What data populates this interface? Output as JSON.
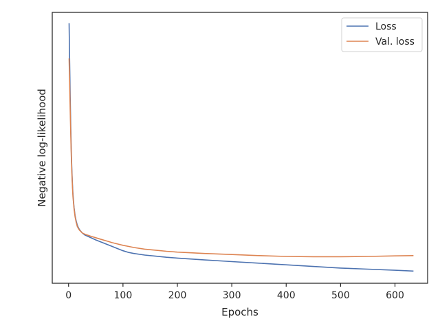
{
  "chart_data": {
    "type": "line",
    "title": "",
    "xlabel": "Epochs",
    "ylabel": "Negative log-likelihood",
    "xlim": [
      -30,
      660
    ],
    "ylim": [
      0,
      100
    ],
    "xticks": [
      0,
      100,
      200,
      300,
      400,
      500,
      600
    ],
    "yticks": [],
    "grid": false,
    "legend_position": "top-right",
    "series": [
      {
        "name": "Loss",
        "color": "#4c72b0",
        "x": [
          1,
          2,
          3,
          4,
          5,
          6,
          7,
          8,
          10,
          12,
          14,
          16,
          18,
          20,
          25,
          30,
          40,
          50,
          60,
          70,
          80,
          90,
          100,
          110,
          120,
          140,
          160,
          180,
          200,
          250,
          300,
          350,
          400,
          450,
          500,
          550,
          600,
          634
        ],
        "y": [
          96,
          82,
          69,
          58,
          49,
          42,
          37,
          33,
          28,
          25,
          23,
          21.5,
          20.5,
          19.8,
          18.6,
          17.8,
          16.9,
          16.0,
          15.2,
          14.4,
          13.6,
          12.8,
          12.0,
          11.4,
          11.0,
          10.4,
          10.0,
          9.6,
          9.3,
          8.6,
          8.0,
          7.4,
          6.8,
          6.2,
          5.6,
          5.2,
          4.8,
          4.5
        ]
      },
      {
        "name": "Val. loss",
        "color": "#dd8452",
        "x": [
          1,
          2,
          3,
          4,
          5,
          6,
          7,
          8,
          10,
          12,
          14,
          16,
          18,
          20,
          25,
          30,
          40,
          50,
          60,
          70,
          80,
          90,
          100,
          110,
          120,
          140,
          160,
          180,
          200,
          250,
          300,
          350,
          400,
          450,
          500,
          550,
          600,
          634
        ],
        "y": [
          83,
          74,
          64,
          55,
          47,
          41,
          36,
          32,
          27.5,
          24.5,
          22.5,
          21,
          20.2,
          19.6,
          18.6,
          18.1,
          17.4,
          16.8,
          16.2,
          15.6,
          15.0,
          14.5,
          14.0,
          13.6,
          13.2,
          12.6,
          12.2,
          11.8,
          11.5,
          11.0,
          10.6,
          10.2,
          9.9,
          9.8,
          9.8,
          9.9,
          10.1,
          10.2
        ]
      }
    ]
  }
}
